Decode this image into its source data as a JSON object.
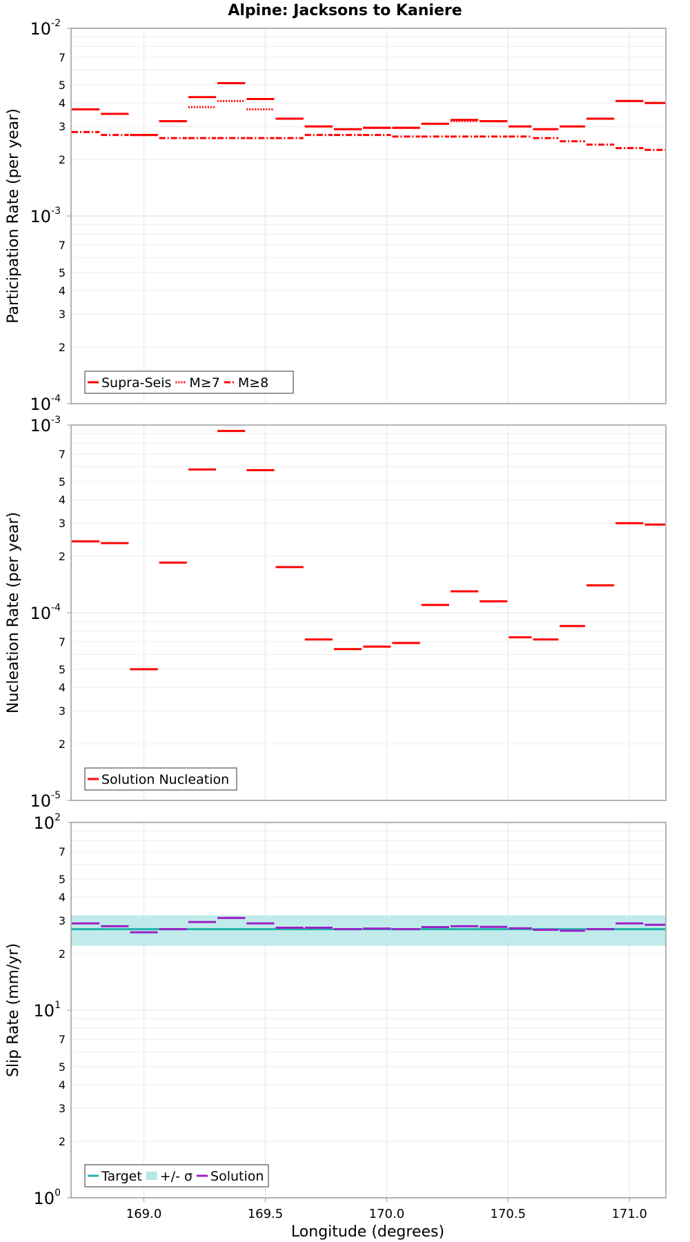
{
  "chart_data": {
    "type": "line",
    "title": "Alpine: Jacksons to Kaniere",
    "xlabel": "Longitude (degrees)",
    "xlim": [
      168.7,
      171.15
    ],
    "x_ticks": [
      169.0,
      169.5,
      170.0,
      170.5,
      171.0
    ],
    "x_tick_labels": [
      "169.0",
      "169.5",
      "170.0",
      "170.5",
      "171.0"
    ],
    "segment_bounds": [
      168.7,
      168.82,
      168.94,
      169.06,
      169.18,
      169.3,
      169.42,
      169.54,
      169.66,
      169.78,
      169.9,
      170.02,
      170.14,
      170.26,
      170.38,
      170.5,
      170.6,
      170.71,
      170.82,
      170.94,
      171.06,
      171.15
    ],
    "panels": [
      {
        "id": "participation",
        "ylabel": "Participation Rate (per year)",
        "yscale": "log",
        "ylim": [
          0.0001,
          0.01
        ],
        "y_major_labels": [
          {
            "value": 0.01,
            "base": "10",
            "exp": "-2"
          },
          {
            "value": 0.001,
            "base": "10",
            "exp": "-3"
          },
          {
            "value": 0.0001,
            "base": "10",
            "exp": "-4"
          }
        ],
        "y_minor_labels": [
          {
            "value": 0.007,
            "label": "7"
          },
          {
            "value": 0.005,
            "label": "5"
          },
          {
            "value": 0.004,
            "label": "4"
          },
          {
            "value": 0.003,
            "label": "3"
          },
          {
            "value": 0.002,
            "label": "2"
          },
          {
            "value": 0.0007,
            "label": "7"
          },
          {
            "value": 0.0005,
            "label": "5"
          },
          {
            "value": 0.0004,
            "label": "4"
          },
          {
            "value": 0.0003,
            "label": "3"
          },
          {
            "value": 0.0002,
            "label": "2"
          }
        ],
        "legend": [
          {
            "label": "Supra-Seis",
            "style": "solid",
            "color": "#ff0000"
          },
          {
            "label": "M≥7",
            "style": "dotted",
            "color": "#ff0000"
          },
          {
            "label": "M≥8",
            "style": "dashdot",
            "color": "#ff0000"
          }
        ],
        "series": [
          {
            "name": "Supra-Seis",
            "style": "solid",
            "color": "#ff0000",
            "values": [
              0.0037,
              0.0035,
              0.0027,
              0.0032,
              0.0043,
              0.0051,
              0.0042,
              0.0033,
              0.003,
              0.0029,
              0.00295,
              0.00295,
              0.0031,
              0.00325,
              0.0032,
              0.003,
              0.0029,
              0.003,
              0.0033,
              0.0041,
              0.004
            ]
          },
          {
            "name": "M≥7",
            "style": "dotted",
            "color": "#ff0000",
            "values": [
              0.0037,
              0.0035,
              0.0027,
              0.0032,
              0.0038,
              0.0041,
              0.0037,
              0.0033,
              0.003,
              0.0029,
              0.00295,
              0.00295,
              0.0031,
              0.0032,
              0.0032,
              0.003,
              0.0029,
              0.003,
              0.0033,
              0.0041,
              0.004
            ]
          },
          {
            "name": "M≥8",
            "style": "dashdot",
            "color": "#ff0000",
            "values": [
              0.0028,
              0.0027,
              0.0027,
              0.0026,
              0.0026,
              0.0026,
              0.0026,
              0.0026,
              0.0027,
              0.0027,
              0.0027,
              0.00265,
              0.00265,
              0.00265,
              0.00265,
              0.00265,
              0.0026,
              0.0025,
              0.0024,
              0.0023,
              0.00225
            ]
          }
        ]
      },
      {
        "id": "nucleation",
        "ylabel": "Nucleation Rate (per year)",
        "yscale": "log",
        "ylim": [
          1e-05,
          0.001
        ],
        "y_major_labels": [
          {
            "value": 0.001,
            "base": "10",
            "exp": "-3"
          },
          {
            "value": 0.0001,
            "base": "10",
            "exp": "-4"
          },
          {
            "value": 1e-05,
            "base": "10",
            "exp": "-5"
          }
        ],
        "y_minor_labels": [
          {
            "value": 0.0007,
            "label": "7"
          },
          {
            "value": 0.0005,
            "label": "5"
          },
          {
            "value": 0.0004,
            "label": "4"
          },
          {
            "value": 0.0003,
            "label": "3"
          },
          {
            "value": 0.0002,
            "label": "2"
          },
          {
            "value": 7e-05,
            "label": "7"
          },
          {
            "value": 5e-05,
            "label": "5"
          },
          {
            "value": 4e-05,
            "label": "4"
          },
          {
            "value": 3e-05,
            "label": "3"
          },
          {
            "value": 2e-05,
            "label": "2"
          }
        ],
        "legend": [
          {
            "label": "Solution Nucleation",
            "style": "solid",
            "color": "#ff0000"
          }
        ],
        "series": [
          {
            "name": "Solution Nucleation",
            "style": "solid",
            "color": "#ff0000",
            "values": [
              0.00024,
              0.000235,
              5e-05,
              0.000185,
              0.00058,
              0.00093,
              0.000575,
              0.000175,
              7.2e-05,
              6.4e-05,
              6.6e-05,
              6.9e-05,
              0.00011,
              0.00013,
              0.000115,
              7.4e-05,
              7.2e-05,
              8.5e-05,
              0.00014,
              0.0003,
              0.000295
            ]
          }
        ]
      },
      {
        "id": "slip",
        "ylabel": "Slip Rate (mm/yr)",
        "yscale": "log",
        "ylim": [
          1,
          100
        ],
        "y_major_labels": [
          {
            "value": 100,
            "base": "10",
            "exp": "2"
          },
          {
            "value": 10,
            "base": "10",
            "exp": "1"
          },
          {
            "value": 1,
            "base": "10",
            "exp": "0"
          }
        ],
        "y_minor_labels": [
          {
            "value": 70,
            "label": "7"
          },
          {
            "value": 50,
            "label": "5"
          },
          {
            "value": 40,
            "label": "4"
          },
          {
            "value": 30,
            "label": "3"
          },
          {
            "value": 20,
            "label": "2"
          },
          {
            "value": 7,
            "label": "7"
          },
          {
            "value": 5,
            "label": "5"
          },
          {
            "value": 4,
            "label": "4"
          },
          {
            "value": 3,
            "label": "3"
          },
          {
            "value": 2,
            "label": "2"
          }
        ],
        "legend": [
          {
            "label": "Target",
            "style": "solid",
            "color": "#20b2aa"
          },
          {
            "label": "+/- σ",
            "style": "band",
            "color": "#b6e8e8"
          },
          {
            "label": "Solution",
            "style": "solid",
            "color": "#9b1fc7"
          }
        ],
        "target": 27,
        "band": [
          22,
          32
        ],
        "series": [
          {
            "name": "Solution",
            "style": "solid",
            "color": "#9b1fc7",
            "values": [
              29,
              28,
              26,
              27,
              29.5,
              31,
              29,
              27.5,
              27.5,
              27,
              27.2,
              27,
              27.7,
              28,
              27.8,
              27.3,
              26.8,
              26.5,
              27,
              29,
              28.5
            ]
          }
        ]
      }
    ]
  }
}
